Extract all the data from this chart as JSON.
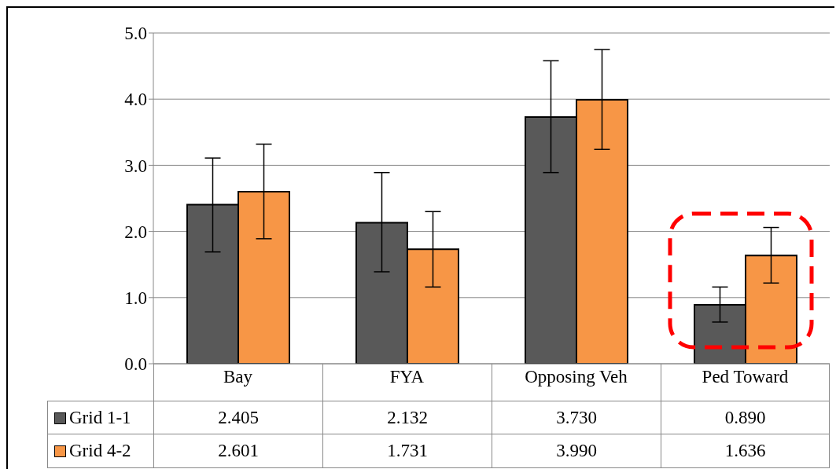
{
  "chart_data": {
    "type": "bar",
    "categories": [
      "Bay",
      "FYA",
      "Opposing Veh",
      "Ped Toward"
    ],
    "series": [
      {
        "name": "Grid 1-1",
        "color": "#595959",
        "values": [
          2.405,
          2.132,
          3.73,
          0.89
        ],
        "value_labels": [
          "2.405",
          "2.132",
          "3.730",
          "0.890"
        ],
        "errors": [
          [
            1.69,
            3.11
          ],
          [
            1.39,
            2.89
          ],
          [
            2.89,
            4.58
          ],
          [
            0.63,
            1.16
          ]
        ]
      },
      {
        "name": "Grid 4-2",
        "color": "#f79646",
        "values": [
          2.601,
          1.731,
          3.99,
          1.636
        ],
        "value_labels": [
          "2.601",
          "1.731",
          "3.990",
          "1.636"
        ],
        "errors": [
          [
            1.89,
            3.32
          ],
          [
            1.16,
            2.3
          ],
          [
            3.24,
            4.75
          ],
          [
            1.22,
            2.06
          ]
        ]
      }
    ],
    "ylim": [
      0,
      5
    ],
    "yticks": [
      {
        "value": 0,
        "label": "0.0"
      },
      {
        "value": 1,
        "label": "1.0"
      },
      {
        "value": 2,
        "label": "2.0"
      },
      {
        "value": 3,
        "label": "3.0"
      },
      {
        "value": 4,
        "label": "4.0"
      },
      {
        "value": 5,
        "label": "5.0"
      }
    ],
    "grid": "y",
    "legend": "bottom"
  }
}
